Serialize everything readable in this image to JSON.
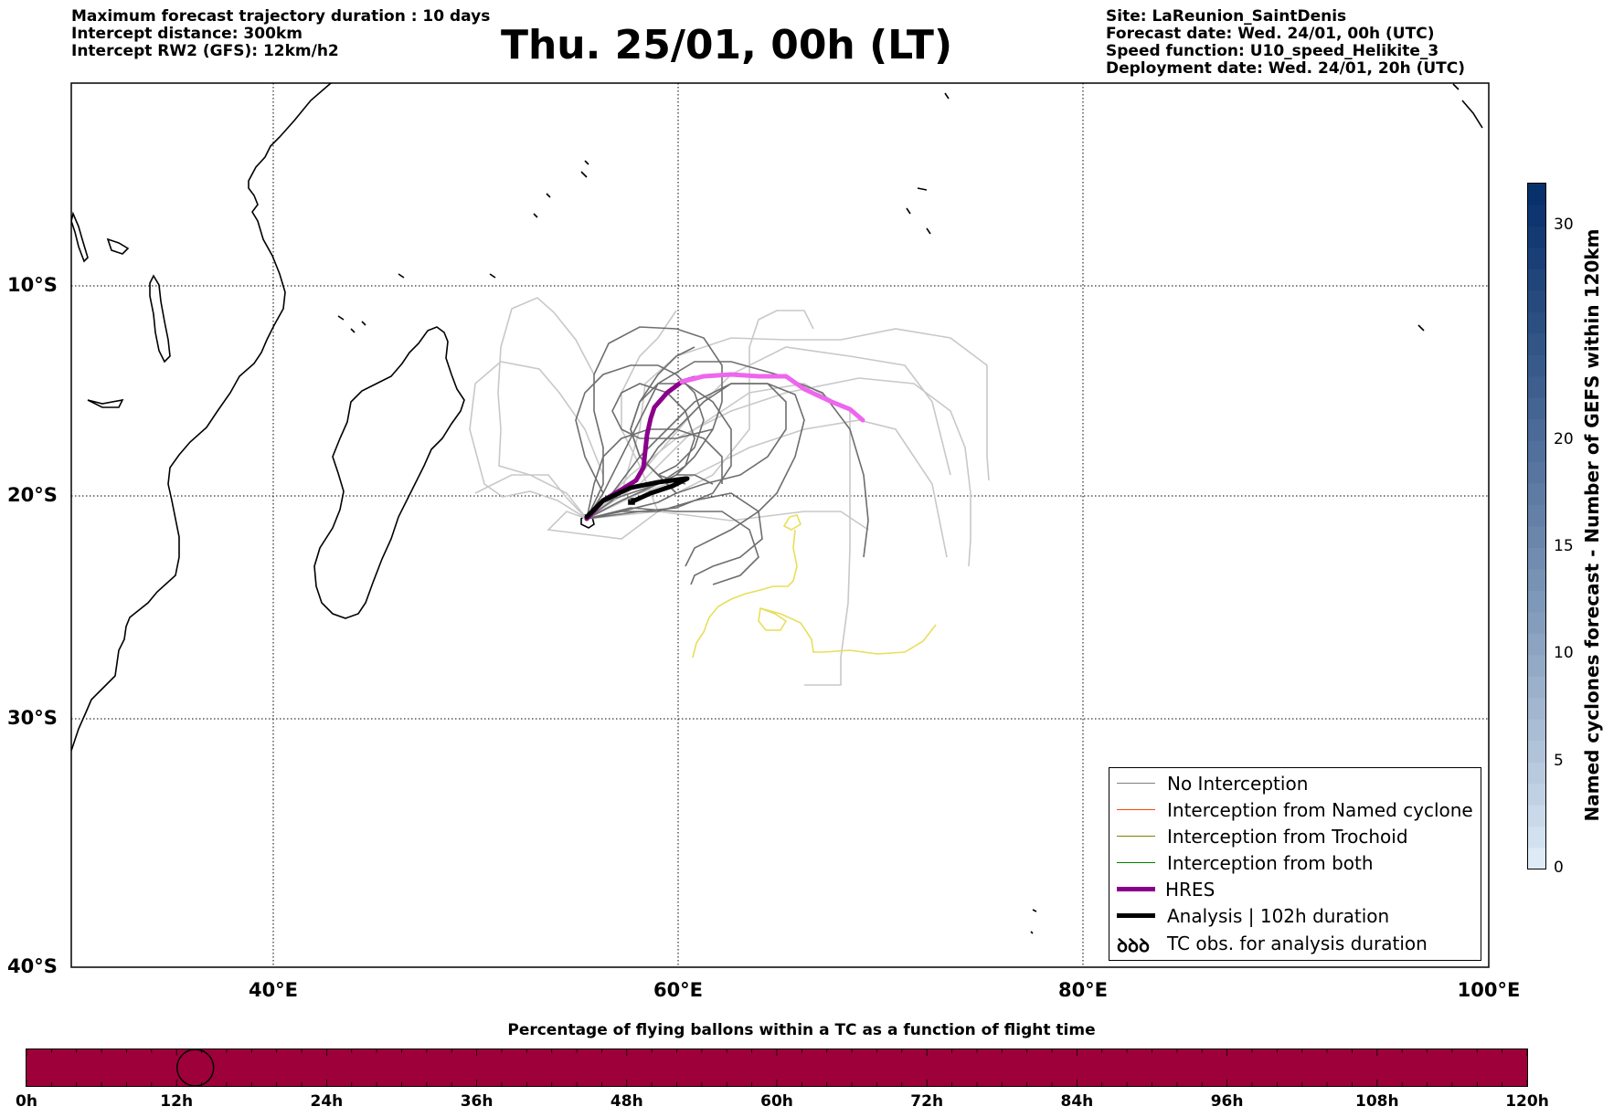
{
  "header_left": {
    "line1": "Maximum forecast trajectory duration : 10 days",
    "line2": "Intercept distance: 300km",
    "line3": "Intercept RW2 (GFS):  12km/h2"
  },
  "title": "Thu. 25/01, 00h (LT)",
  "header_right": {
    "line1": "Site: LaReunion_SaintDenis",
    "line2": "Forecast date: Wed. 24/01, 00h (UTC)",
    "line3": "Speed function: U10_speed_Helikite_3",
    "line4": "Deployment date: Wed. 24/01, 20h (UTC)"
  },
  "map": {
    "lat_labels": [
      "10°S",
      "20°S",
      "30°S",
      "40°S"
    ],
    "lon_labels": [
      "40°E",
      "60°E",
      "80°E",
      "100°E"
    ],
    "lon_range": [
      30,
      100
    ],
    "lat_range": [
      -40,
      0
    ]
  },
  "legend": {
    "items": [
      {
        "label": "No Interception",
        "color": "#7f7f7f"
      },
      {
        "label": "Interception from Named cyclone",
        "color": "#ff4500"
      },
      {
        "label": "Interception from Trochoid",
        "color": "#808000"
      },
      {
        "label": "Interception from both",
        "color": "#008000"
      },
      {
        "label": "HRES",
        "color": "#8b008b"
      },
      {
        "label": "Analysis | 102h duration",
        "color": "#000000"
      },
      {
        "label": "TC obs. for analysis duration",
        "symbol": "ꝺꝺꝺ"
      }
    ]
  },
  "colorbar": {
    "label": "Named cyclones forecast - Number of GEFS within 120km",
    "ticks": [
      "0",
      "5",
      "10",
      "15",
      "20",
      "30"
    ],
    "max": 32
  },
  "flight_bar": {
    "title": "Percentage of flying ballons within a TC as a function of flight time",
    "ticks": [
      "0h",
      "12h",
      "24h",
      "36h",
      "48h",
      "60h",
      "72h",
      "84h",
      "96h",
      "108h",
      "120h"
    ],
    "marker_hours": 13.5,
    "color": "#9e003a"
  }
}
